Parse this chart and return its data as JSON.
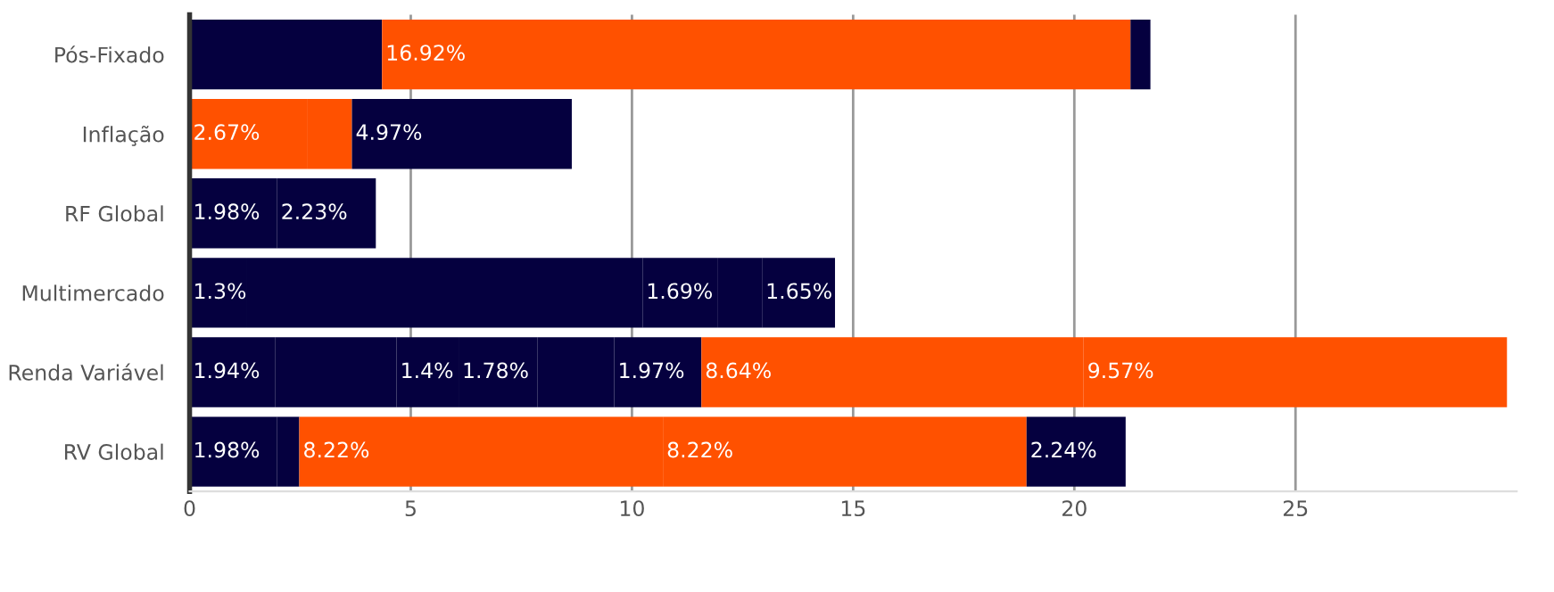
{
  "chart_data": {
    "type": "bar",
    "orientation": "horizontal",
    "stacked": true,
    "categories": [
      "Pós-Fixado",
      "Inflação",
      "RF Global",
      "Multimercado",
      "Renda Variável",
      "RV Global"
    ],
    "series": [
      {
        "colors": [
          "#05003f",
          "#ff5100",
          "#05003f",
          "#05003f",
          "#05003f",
          "#05003f"
        ],
        "values": [
          4.35,
          2.67,
          1.98,
          1.3,
          1.94,
          1.98
        ],
        "value_labels": [
          null,
          "2.67%",
          "1.98%",
          "1.3%",
          "1.94%",
          "1.98%"
        ]
      },
      {
        "colors": [
          "#ff5100",
          "#ff5100",
          "#05003f",
          "#05003f",
          "#05003f",
          "#05003f"
        ],
        "values": [
          16.92,
          1.0,
          2.23,
          8.94,
          2.74,
          0.5
        ],
        "value_labels": [
          "16.92%",
          null,
          "2.23%",
          null,
          null,
          null
        ]
      },
      {
        "colors": [
          "#05003f",
          "#05003f",
          null,
          "#05003f",
          "#05003f",
          "#ff5100"
        ],
        "values": [
          0.45,
          4.97,
          null,
          1.69,
          1.4,
          8.22
        ],
        "value_labels": [
          null,
          "4.97%",
          null,
          "1.69%",
          "1.4%",
          "8.22%"
        ]
      },
      {
        "colors": [
          null,
          null,
          null,
          "#05003f",
          "#05003f",
          "#ff5100"
        ],
        "values": [
          null,
          null,
          null,
          1.01,
          1.78,
          8.22
        ],
        "value_labels": [
          null,
          null,
          null,
          null,
          "1.78%",
          "8.22%"
        ]
      },
      {
        "colors": [
          null,
          null,
          null,
          "#05003f",
          "#05003f",
          "#05003f"
        ],
        "values": [
          null,
          null,
          null,
          1.65,
          1.74,
          2.24
        ],
        "value_labels": [
          null,
          null,
          null,
          "1.65%",
          null,
          "2.24%"
        ]
      },
      {
        "colors": [
          null,
          null,
          null,
          null,
          "#05003f",
          null
        ],
        "values": [
          null,
          null,
          null,
          null,
          1.97,
          null
        ],
        "value_labels": [
          null,
          null,
          null,
          null,
          "1.97%",
          null
        ]
      },
      {
        "colors": [
          null,
          null,
          null,
          null,
          "#ff5100",
          null
        ],
        "values": [
          null,
          null,
          null,
          null,
          8.64,
          null
        ],
        "value_labels": [
          null,
          null,
          null,
          null,
          "8.64%",
          null
        ]
      },
      {
        "colors": [
          null,
          null,
          null,
          null,
          "#ff5100",
          null
        ],
        "values": [
          null,
          null,
          null,
          null,
          9.57,
          null
        ],
        "value_labels": [
          null,
          null,
          null,
          null,
          "9.57%",
          null
        ]
      }
    ],
    "xlim": [
      0,
      30
    ],
    "xticks": [
      0,
      5,
      10,
      15,
      20,
      25
    ],
    "grid": "x"
  }
}
